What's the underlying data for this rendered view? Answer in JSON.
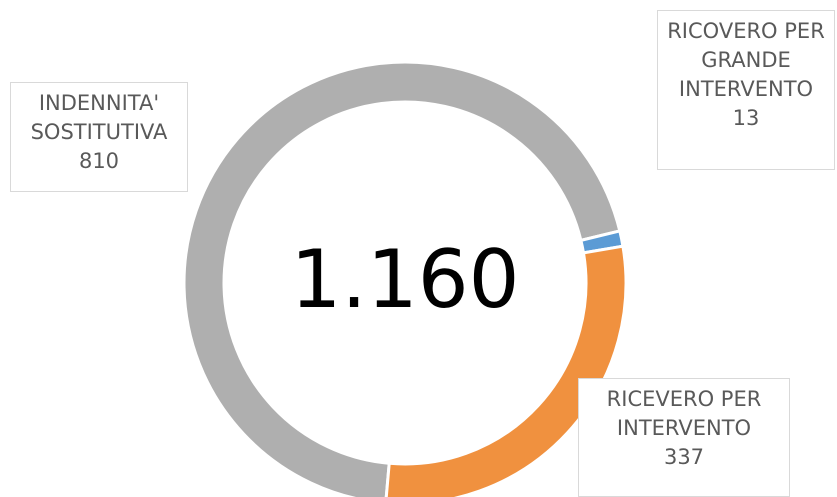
{
  "chart_data": {
    "type": "donut",
    "categories": [
      "INDENNITA' SOSTITUTIVA",
      "RICOVERO PER GRANDE INTERVENTO",
      "RICEVERO PER INTERVENTO"
    ],
    "values": [
      810,
      13,
      337
    ],
    "colors": [
      "#afafaf",
      "#5b9bd5",
      "#f0913f"
    ],
    "center_label": "1.160"
  }
}
